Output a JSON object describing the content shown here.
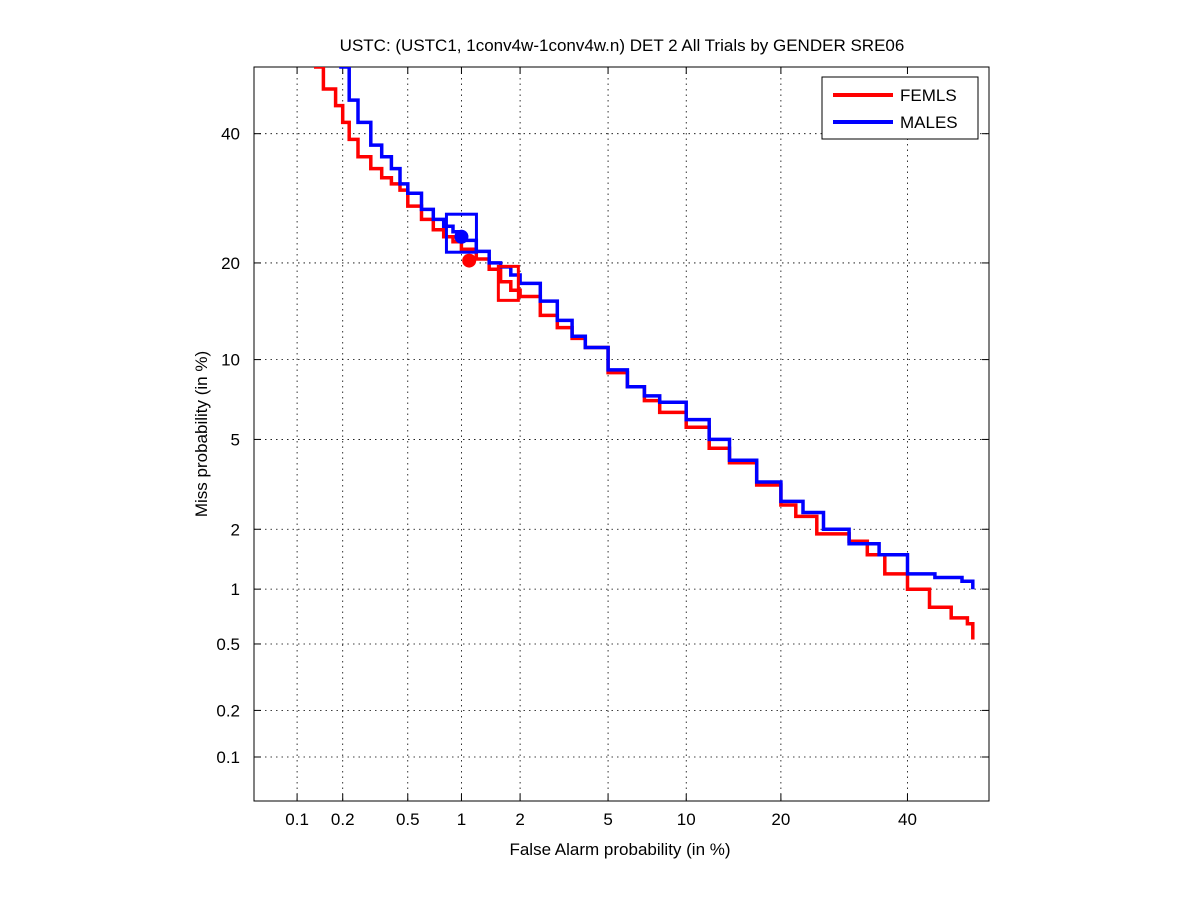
{
  "chart_data": {
    "type": "line",
    "title": "USTC: (USTC1, 1conv4w-1conv4w.n) DET 2 All Trials by GENDER SRE06",
    "xlabel": "False Alarm probability (in %)",
    "ylabel": "Miss probability (in %)",
    "x_scale": "probit",
    "y_scale": "probit",
    "xlim": [
      0.05,
      55
    ],
    "ylim": [
      0.05,
      52
    ],
    "x_ticks": [
      {
        "value": 0.1,
        "label": "0.1"
      },
      {
        "value": 0.2,
        "label": "0.2"
      },
      {
        "value": 0.5,
        "label": "0.5"
      },
      {
        "value": 1,
        "label": "1"
      },
      {
        "value": 2,
        "label": "2"
      },
      {
        "value": 5,
        "label": "5"
      },
      {
        "value": 10,
        "label": "10"
      },
      {
        "value": 20,
        "label": "20"
      },
      {
        "value": 40,
        "label": "40"
      }
    ],
    "y_ticks": [
      {
        "value": 0.1,
        "label": "0.1"
      },
      {
        "value": 0.2,
        "label": "0.2"
      },
      {
        "value": 0.5,
        "label": "0.5"
      },
      {
        "value": 1,
        "label": "1"
      },
      {
        "value": 2,
        "label": "2"
      },
      {
        "value": 5,
        "label": "5"
      },
      {
        "value": 10,
        "label": "10"
      },
      {
        "value": 20,
        "label": "20"
      },
      {
        "value": 40,
        "label": "40"
      }
    ],
    "grid": true,
    "legend_position": "top-right",
    "series": [
      {
        "name": "FEMLS",
        "color": "#ff0000",
        "x": [
          0.13,
          0.15,
          0.18,
          0.2,
          0.22,
          0.25,
          0.3,
          0.35,
          0.4,
          0.45,
          0.5,
          0.6,
          0.7,
          0.8,
          0.9,
          1.0,
          1.2,
          1.4,
          1.6,
          1.8,
          2.0,
          2.5,
          3.0,
          3.5,
          4.0,
          5.0,
          6.0,
          7.0,
          8.0,
          10.0,
          12.0,
          14.0,
          17.0,
          20.0,
          22.0,
          25.0,
          30.0,
          33.0,
          36.0,
          40.0,
          44.0,
          48.0,
          51.0,
          52.0
        ],
        "y": [
          52.0,
          48.0,
          45.0,
          42.0,
          39.0,
          36.0,
          34.0,
          32.5,
          31.5,
          30.5,
          28.0,
          26.0,
          24.5,
          23.5,
          22.8,
          21.8,
          20.5,
          19.2,
          17.7,
          16.7,
          16.0,
          14.0,
          12.8,
          11.8,
          11.0,
          9.0,
          8.0,
          7.1,
          6.4,
          5.6,
          4.6,
          4.0,
          3.2,
          2.6,
          2.3,
          1.9,
          1.75,
          1.5,
          1.2,
          1.0,
          0.8,
          0.7,
          0.65,
          0.53
        ]
      },
      {
        "name": "MALES",
        "color": "#0000ff",
        "x": [
          0.19,
          0.22,
          0.25,
          0.3,
          0.35,
          0.4,
          0.45,
          0.5,
          0.6,
          0.7,
          0.8,
          0.9,
          1.0,
          1.2,
          1.4,
          1.6,
          1.8,
          2.0,
          2.5,
          3.0,
          3.5,
          4.0,
          5.0,
          6.0,
          7.0,
          8.0,
          10.0,
          12.0,
          14.0,
          17.0,
          20.0,
          23.0,
          26.0,
          30.0,
          35.0,
          40.0,
          45.0,
          50.0,
          52.0
        ],
        "y": [
          52.0,
          46.0,
          42.0,
          38.0,
          36.0,
          34.0,
          31.5,
          30.0,
          27.5,
          26.0,
          25.0,
          24.2,
          23.0,
          21.5,
          20.0,
          19.5,
          18.5,
          17.5,
          15.5,
          13.5,
          12.0,
          11.0,
          9.2,
          8.0,
          7.4,
          7.0,
          6.0,
          5.0,
          4.1,
          3.3,
          2.7,
          2.4,
          2.0,
          1.7,
          1.5,
          1.2,
          1.15,
          1.1,
          1.0
        ]
      }
    ],
    "markers": [
      {
        "series": "FEMLS",
        "type": "dot",
        "x": 1.1,
        "y": 20.3
      },
      {
        "series": "MALES",
        "type": "dot",
        "x": 1.0,
        "y": 23.5
      },
      {
        "series": "FEMLS",
        "type": "square",
        "x": 1.75,
        "y": 17.5
      },
      {
        "series": "MALES",
        "type": "square",
        "x": 1.0,
        "y": 24.0
      }
    ]
  }
}
